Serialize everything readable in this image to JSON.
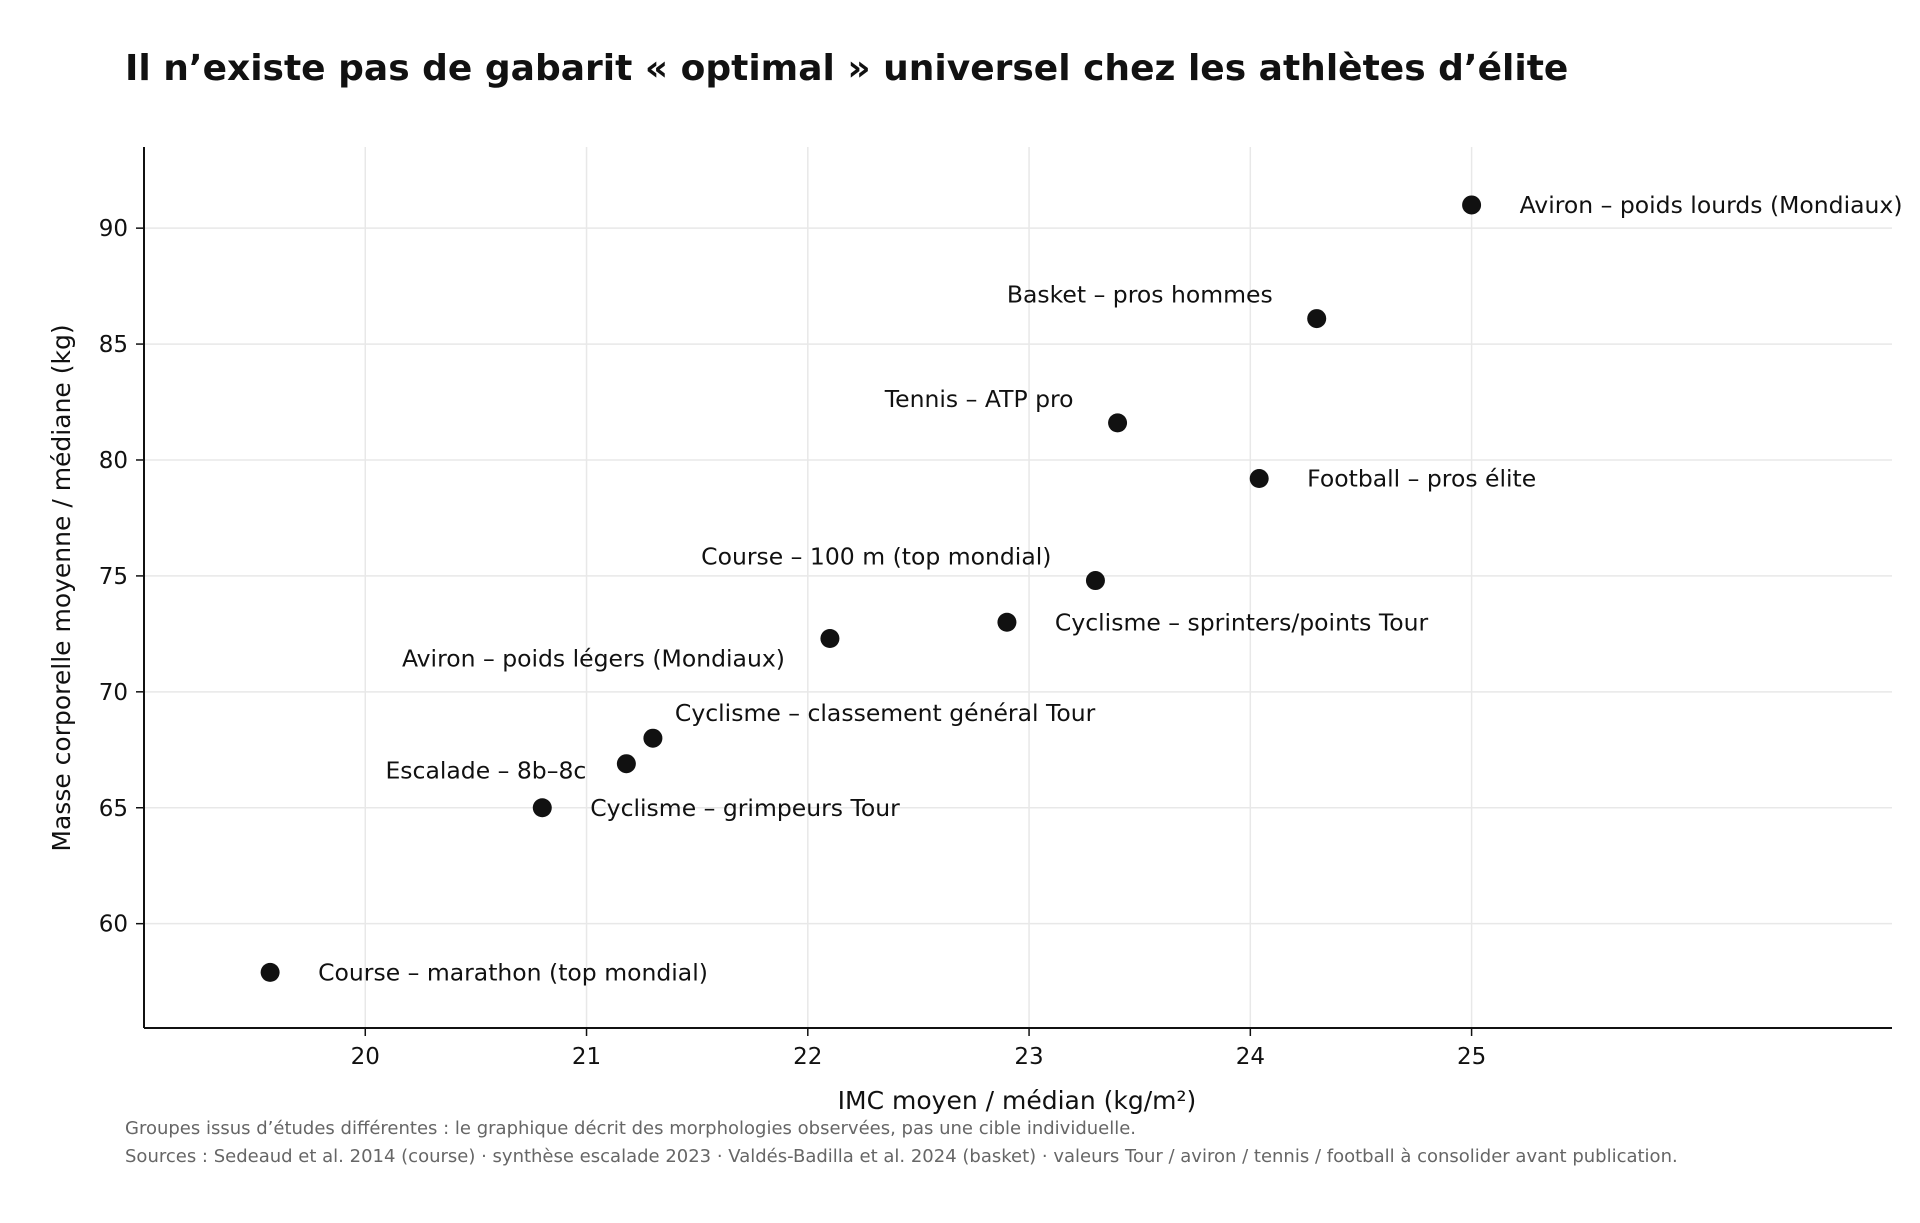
{
  "chart_data": {
    "type": "scatter",
    "title": "Il n’existe pas de gabarit « optimal » universel chez les athlètes d’élite",
    "xlabel": "IMC moyen / médian (kg/m²)",
    "ylabel": "Masse corporelle moyenne / médiane (kg)",
    "xlim": [
      19,
      26.9
    ],
    "ylim": [
      55.5,
      93.5
    ],
    "xticks": [
      "20",
      "21",
      "22",
      "23",
      "24",
      "25"
    ],
    "yticks": [
      "60",
      "65",
      "70",
      "75",
      "80",
      "85",
      "90"
    ],
    "grid": true,
    "marker_color": "#111111",
    "points": [
      {
        "label": "Aviron – poids lourds (Mondiaux)",
        "x": 25.0,
        "y": 91.0,
        "label_side": "right"
      },
      {
        "label": "Basket – pros hommes",
        "x": 24.3,
        "y": 86.1,
        "label_side": "above-left"
      },
      {
        "label": "Tennis – ATP pro",
        "x": 23.4,
        "y": 81.6,
        "label_side": "above-left"
      },
      {
        "label": "Football – pros élite",
        "x": 24.04,
        "y": 79.2,
        "label_side": "right"
      },
      {
        "label": "Course – 100 m (top mondial)",
        "x": 23.3,
        "y": 74.8,
        "label_side": "above-left"
      },
      {
        "label": "Cyclisme – sprinters/points Tour",
        "x": 22.9,
        "y": 73.0,
        "label_side": "right"
      },
      {
        "label": "Aviron – poids légers (Mondiaux)",
        "x": 22.1,
        "y": 72.3,
        "label_side": "below-left"
      },
      {
        "label": "Cyclisme – classement général Tour",
        "x": 21.3,
        "y": 68.0,
        "label_side": "above-right"
      },
      {
        "label": "Escalade – 8b–8c",
        "x": 21.18,
        "y": 66.9,
        "label_side": "left"
      },
      {
        "label": "Cyclisme – grimpeurs Tour",
        "x": 20.8,
        "y": 65.0,
        "label_side": "right"
      },
      {
        "label": "Course – marathon (top mondial)",
        "x": 19.57,
        "y": 57.9,
        "label_side": "right"
      }
    ]
  },
  "footnotes": [
    "Groupes issus d’études différentes : le graphique décrit des morphologies observées, pas une cible individuelle.",
    "Sources : Sedeaud et al. 2014 (course) · synthèse escalade 2023 · Valdés-Badilla et al. 2024 (basket) · valeurs Tour / aviron / tennis / football à consolider avant publication."
  ]
}
